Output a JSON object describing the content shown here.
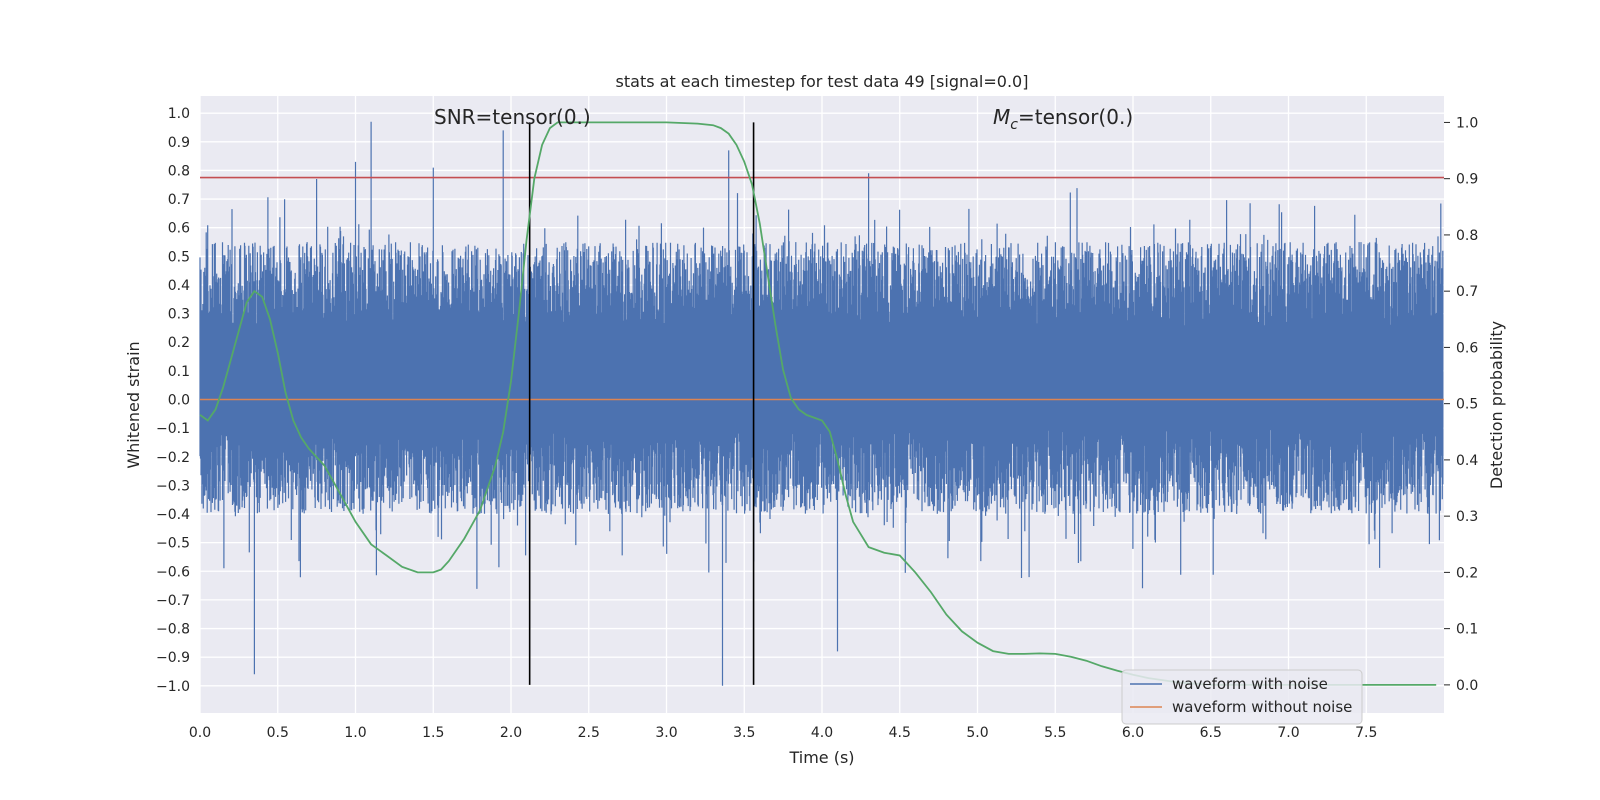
{
  "chart_data": {
    "type": "line",
    "title": "stats at each timestep for test data 49 [signal=0.0]",
    "xlabel": "Time (s)",
    "ylabel_left": "Whitened strain",
    "ylabel_right": "Detection probability",
    "xlim": [
      0.0,
      8.0
    ],
    "ylim_left": [
      -1.095,
      1.06
    ],
    "ylim_right": [
      -0.05,
      1.047
    ],
    "x_ticks": [
      "0.0",
      "0.5",
      "1.0",
      "1.5",
      "2.0",
      "2.5",
      "3.0",
      "3.5",
      "4.0",
      "4.5",
      "5.0",
      "5.5",
      "6.0",
      "6.5",
      "7.0",
      "7.5"
    ],
    "y_left_ticks": [
      "1.0",
      "0.9",
      "0.8",
      "0.7",
      "0.6",
      "0.5",
      "0.4",
      "0.3",
      "0.2",
      "0.1",
      "0.0",
      "−0.1",
      "−0.2",
      "−0.3",
      "−0.4",
      "−0.5",
      "−0.6",
      "−0.7",
      "−0.8",
      "−0.9",
      "−1.0"
    ],
    "y_right_ticks": [
      "1.0",
      "0.9",
      "0.8",
      "0.7",
      "0.6",
      "0.5",
      "0.4",
      "0.3",
      "0.2",
      "0.1",
      "0.0"
    ],
    "grid": true,
    "legend_position": "bottom-right",
    "annotations": {
      "snr": "SNR=tensor(0.)",
      "mc_symbol": "M",
      "mc_sub": "c",
      "mc_value": "=tensor(0.)"
    },
    "series": [
      {
        "name": "waveform with noise",
        "color": "#4c72b0",
        "kind": "noise",
        "approx_band": [
          -0.4,
          0.55
        ],
        "notable_peaks": [
          [
            0.35,
            -0.96
          ],
          [
            0.75,
            0.77
          ],
          [
            1.0,
            0.83
          ],
          [
            1.1,
            0.97
          ],
          [
            1.5,
            0.81
          ],
          [
            1.95,
            0.94
          ],
          [
            3.36,
            -1.0
          ],
          [
            3.4,
            0.87
          ],
          [
            4.1,
            -0.88
          ],
          [
            4.3,
            0.79
          ]
        ]
      },
      {
        "name": "waveform without noise",
        "color": "#dd8452",
        "y": 0.0
      },
      {
        "axis": "right",
        "color": "#55a868",
        "x": [
          0.0,
          0.05,
          0.1,
          0.15,
          0.2,
          0.25,
          0.3,
          0.35,
          0.4,
          0.45,
          0.5,
          0.55,
          0.6,
          0.65,
          0.7,
          0.8,
          0.9,
          1.0,
          1.1,
          1.2,
          1.3,
          1.4,
          1.5,
          1.55,
          1.6,
          1.7,
          1.8,
          1.9,
          1.95,
          2.0,
          2.05,
          2.1,
          2.15,
          2.2,
          2.25,
          2.3,
          2.4,
          2.6,
          3.0,
          3.2,
          3.3,
          3.35,
          3.4,
          3.45,
          3.5,
          3.55,
          3.6,
          3.65,
          3.7,
          3.75,
          3.8,
          3.85,
          3.9,
          4.0,
          4.05,
          4.1,
          4.15,
          4.2,
          4.3,
          4.4,
          4.5,
          4.6,
          4.7,
          4.8,
          4.9,
          5.0,
          5.1,
          5.2,
          5.3,
          5.4,
          5.5,
          5.6,
          5.7,
          5.8,
          5.9,
          6.0,
          6.1,
          6.2,
          6.3,
          6.5,
          7.0,
          7.5,
          7.95
        ],
        "y": [
          0.48,
          0.47,
          0.49,
          0.53,
          0.58,
          0.63,
          0.68,
          0.7,
          0.69,
          0.65,
          0.59,
          0.52,
          0.47,
          0.44,
          0.42,
          0.39,
          0.34,
          0.29,
          0.25,
          0.23,
          0.21,
          0.2,
          0.2,
          0.205,
          0.22,
          0.26,
          0.31,
          0.39,
          0.45,
          0.54,
          0.66,
          0.79,
          0.9,
          0.96,
          0.99,
          1.0,
          1.0,
          1.0,
          1.0,
          0.998,
          0.995,
          0.99,
          0.98,
          0.96,
          0.93,
          0.89,
          0.82,
          0.73,
          0.64,
          0.56,
          0.51,
          0.49,
          0.48,
          0.47,
          0.45,
          0.4,
          0.34,
          0.29,
          0.245,
          0.235,
          0.23,
          0.2,
          0.165,
          0.125,
          0.095,
          0.075,
          0.06,
          0.055,
          0.055,
          0.056,
          0.055,
          0.05,
          0.043,
          0.033,
          0.025,
          0.018,
          0.012,
          0.008,
          0.004,
          0.0,
          0.0,
          0.0,
          0.0
        ]
      }
    ],
    "hlines_left": [
      {
        "y": 0.775,
        "color": "#c44e52"
      }
    ],
    "vlines": [
      {
        "x": 2.12,
        "color": "#000000",
        "from_right": 0.0,
        "to_right": 1.0
      },
      {
        "x": 3.56,
        "color": "#000000",
        "from_right": 0.0,
        "to_right": 1.0
      }
    ]
  }
}
